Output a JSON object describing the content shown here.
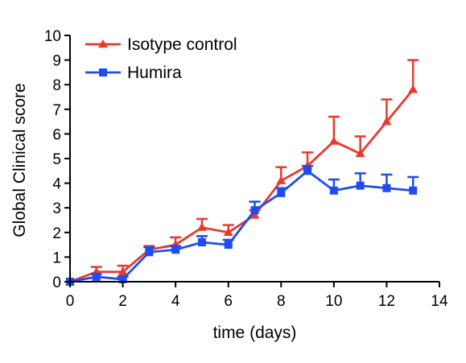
{
  "chart_data": {
    "type": "line",
    "title": "",
    "xlabel": "time (days)",
    "ylabel": "Global Clinical score",
    "xlim": [
      0,
      14
    ],
    "ylim": [
      0,
      10
    ],
    "x_ticks": [
      "0",
      "2",
      "4",
      "6",
      "8",
      "10",
      "12",
      "14"
    ],
    "y_ticks": [
      "0",
      "1",
      "2",
      "3",
      "4",
      "5",
      "6",
      "7",
      "8",
      "9",
      "10"
    ],
    "grid": false,
    "legend_position": "top-left",
    "x": [
      0,
      1,
      2,
      3,
      4,
      5,
      6,
      7,
      8,
      9,
      10,
      11,
      12,
      13
    ],
    "series": [
      {
        "name": "Isotype control",
        "color": "#e8392f",
        "marker": "triangle",
        "values": [
          0,
          0.4,
          0.4,
          1.3,
          1.5,
          2.2,
          2.0,
          2.7,
          4.1,
          4.7,
          5.7,
          5.2,
          6.5,
          7.8
        ],
        "error": [
          0,
          0.2,
          0.25,
          0.15,
          0.3,
          0.35,
          0.3,
          0.2,
          0.55,
          0.55,
          1.0,
          0.7,
          0.9,
          1.2
        ],
        "error_direction": "up"
      },
      {
        "name": "Humira",
        "color": "#1f4cf0",
        "marker": "square",
        "values": [
          0,
          0.2,
          0.1,
          1.2,
          1.3,
          1.6,
          1.5,
          2.9,
          3.6,
          4.5,
          3.7,
          3.9,
          3.8,
          3.7
        ],
        "error": [
          0,
          0.1,
          0.1,
          0.2,
          0.15,
          0.25,
          0.2,
          0.35,
          0.2,
          0.2,
          0.45,
          0.5,
          0.55,
          0.55
        ],
        "error_direction": "up"
      }
    ]
  }
}
